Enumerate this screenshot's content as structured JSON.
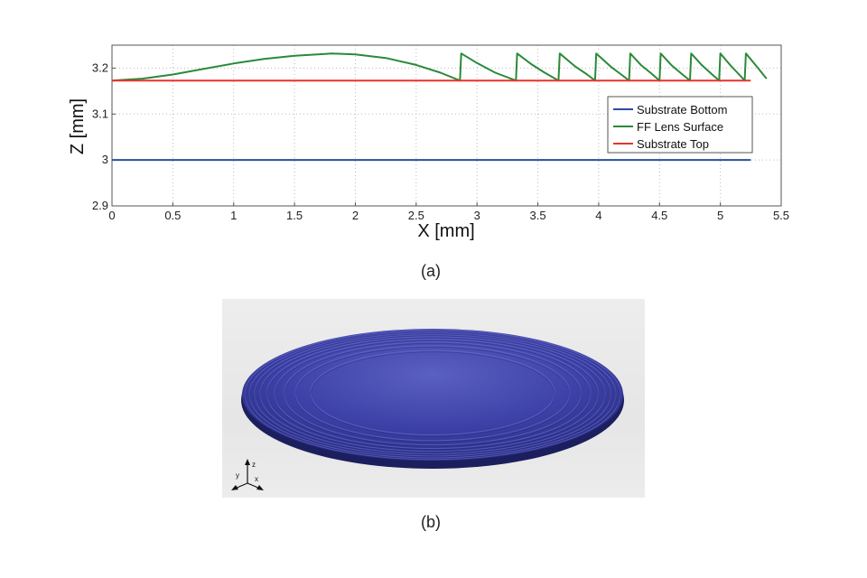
{
  "figure": {
    "caption_a": "(a)",
    "caption_b": "(b)"
  },
  "chart_data": {
    "type": "line",
    "title": "",
    "xlabel": "X [mm]",
    "ylabel": "Z [mm]",
    "xlim": [
      0,
      5.5
    ],
    "ylim": [
      2.9,
      3.25
    ],
    "xticks": [
      "0",
      "0.5",
      "1",
      "1.5",
      "2",
      "2.5",
      "3",
      "3.5",
      "4",
      "4.5",
      "5",
      "5.5"
    ],
    "yticks": [
      "2.9",
      "3",
      "3.1",
      "3.2"
    ],
    "grid": "dotted",
    "legend_position": "right",
    "series": [
      {
        "name": "Substrate Bottom",
        "color": "#2a4ea0",
        "x": [
          0,
          5.25
        ],
        "y": [
          3.0,
          3.0
        ]
      },
      {
        "name": "FF Lens Surface",
        "color": "#2a8a3a",
        "x": [
          0,
          0.25,
          0.5,
          0.75,
          1.0,
          1.25,
          1.5,
          1.75,
          1.8,
          2.0,
          2.25,
          2.5,
          2.7,
          2.86,
          2.87,
          3.0,
          3.15,
          3.32,
          3.33,
          3.45,
          3.55,
          3.67,
          3.68,
          3.8,
          3.9,
          3.97,
          3.98,
          4.1,
          4.18,
          4.25,
          4.26,
          4.35,
          4.43,
          4.5,
          4.51,
          4.6,
          4.68,
          4.75,
          4.76,
          4.85,
          4.92,
          4.99,
          5.0,
          5.08,
          5.14,
          5.2,
          5.21,
          5.3,
          5.38
        ],
        "y": [
          3.173,
          3.177,
          3.186,
          3.198,
          3.21,
          3.22,
          3.227,
          3.231,
          3.232,
          3.23,
          3.222,
          3.207,
          3.19,
          3.173,
          3.232,
          3.211,
          3.19,
          3.173,
          3.232,
          3.208,
          3.191,
          3.173,
          3.232,
          3.205,
          3.187,
          3.173,
          3.232,
          3.203,
          3.187,
          3.173,
          3.232,
          3.206,
          3.189,
          3.173,
          3.232,
          3.206,
          3.188,
          3.173,
          3.232,
          3.206,
          3.189,
          3.173,
          3.232,
          3.207,
          3.19,
          3.173,
          3.232,
          3.203,
          3.177
        ]
      },
      {
        "name": "Substrate Top",
        "color": "#e8342a",
        "x": [
          0,
          5.25
        ],
        "y": [
          3.173,
          3.173
        ]
      }
    ]
  },
  "render": {
    "disk_color": "#3b3f9e",
    "background_color": "#e9e9e9",
    "axis_triad_labels": [
      "z",
      "y",
      "x"
    ]
  }
}
